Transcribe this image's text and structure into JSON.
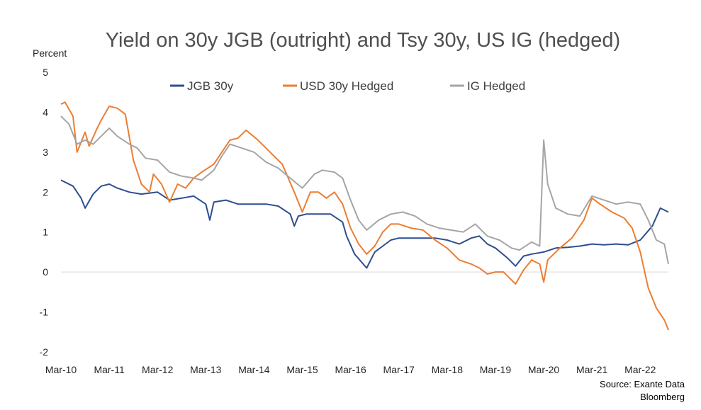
{
  "chart_data": {
    "type": "line",
    "title": "Yield on 30y JGB (outright) and Tsy 30y, US IG (hedged)",
    "ylabel": "Percent",
    "xlabel": "",
    "ylim": [
      -2,
      5
    ],
    "yticks": [
      -2,
      -1,
      0,
      1,
      2,
      3,
      4,
      5
    ],
    "xlim": [
      "2010-03",
      "2022-10"
    ],
    "xtick_labels": [
      "Mar-10",
      "Mar-11",
      "Mar-12",
      "Mar-13",
      "Mar-14",
      "Mar-15",
      "Mar-16",
      "Mar-17",
      "Mar-18",
      "Mar-19",
      "Mar-20",
      "Mar-21",
      "Mar-22"
    ],
    "xtick_dates": [
      "2010-03",
      "2011-03",
      "2012-03",
      "2013-03",
      "2014-03",
      "2015-03",
      "2016-03",
      "2017-03",
      "2018-03",
      "2019-03",
      "2020-03",
      "2021-03",
      "2022-03"
    ],
    "grid": false,
    "legend_position": "top",
    "series": [
      {
        "name": "JGB 30y",
        "color": "#2E4D8F",
        "points": [
          [
            "2010-03",
            2.3
          ],
          [
            "2010-06",
            2.15
          ],
          [
            "2010-08",
            1.85
          ],
          [
            "2010-09",
            1.6
          ],
          [
            "2010-11",
            1.95
          ],
          [
            "2011-01",
            2.15
          ],
          [
            "2011-03",
            2.2
          ],
          [
            "2011-05",
            2.1
          ],
          [
            "2011-08",
            2.0
          ],
          [
            "2011-11",
            1.95
          ],
          [
            "2012-03",
            2.0
          ],
          [
            "2012-06",
            1.8
          ],
          [
            "2012-09",
            1.85
          ],
          [
            "2012-12",
            1.9
          ],
          [
            "2013-03",
            1.7
          ],
          [
            "2013-04",
            1.3
          ],
          [
            "2013-05",
            1.75
          ],
          [
            "2013-08",
            1.8
          ],
          [
            "2013-11",
            1.7
          ],
          [
            "2014-03",
            1.7
          ],
          [
            "2014-06",
            1.7
          ],
          [
            "2014-09",
            1.65
          ],
          [
            "2014-12",
            1.45
          ],
          [
            "2015-01",
            1.15
          ],
          [
            "2015-02",
            1.4
          ],
          [
            "2015-04",
            1.45
          ],
          [
            "2015-07",
            1.45
          ],
          [
            "2015-10",
            1.45
          ],
          [
            "2016-01",
            1.25
          ],
          [
            "2016-02",
            0.9
          ],
          [
            "2016-04",
            0.45
          ],
          [
            "2016-07",
            0.1
          ],
          [
            "2016-09",
            0.5
          ],
          [
            "2016-11",
            0.65
          ],
          [
            "2017-01",
            0.8
          ],
          [
            "2017-03",
            0.85
          ],
          [
            "2017-06",
            0.85
          ],
          [
            "2017-09",
            0.85
          ],
          [
            "2017-12",
            0.85
          ],
          [
            "2018-03",
            0.8
          ],
          [
            "2018-06",
            0.7
          ],
          [
            "2018-09",
            0.85
          ],
          [
            "2018-11",
            0.9
          ],
          [
            "2019-01",
            0.7
          ],
          [
            "2019-03",
            0.6
          ],
          [
            "2019-06",
            0.35
          ],
          [
            "2019-08",
            0.15
          ],
          [
            "2019-10",
            0.4
          ],
          [
            "2019-12",
            0.45
          ],
          [
            "2020-03",
            0.5
          ],
          [
            "2020-06",
            0.6
          ],
          [
            "2020-09",
            0.62
          ],
          [
            "2020-12",
            0.65
          ],
          [
            "2021-03",
            0.7
          ],
          [
            "2021-06",
            0.68
          ],
          [
            "2021-09",
            0.7
          ],
          [
            "2021-12",
            0.68
          ],
          [
            "2022-03",
            0.8
          ],
          [
            "2022-06",
            1.15
          ],
          [
            "2022-08",
            1.6
          ],
          [
            "2022-10",
            1.5
          ]
        ]
      },
      {
        "name": "USD 30y Hedged",
        "color": "#ED7D31",
        "points": [
          [
            "2010-03",
            4.2
          ],
          [
            "2010-04",
            4.25
          ],
          [
            "2010-06",
            3.9
          ],
          [
            "2010-07",
            3.0
          ],
          [
            "2010-09",
            3.5
          ],
          [
            "2010-10",
            3.15
          ],
          [
            "2010-12",
            3.6
          ],
          [
            "2011-01",
            3.8
          ],
          [
            "2011-03",
            4.15
          ],
          [
            "2011-05",
            4.1
          ],
          [
            "2011-07",
            3.95
          ],
          [
            "2011-09",
            2.8
          ],
          [
            "2011-11",
            2.2
          ],
          [
            "2012-01",
            2.0
          ],
          [
            "2012-02",
            2.45
          ],
          [
            "2012-04",
            2.2
          ],
          [
            "2012-06",
            1.75
          ],
          [
            "2012-08",
            2.2
          ],
          [
            "2012-10",
            2.1
          ],
          [
            "2012-12",
            2.35
          ],
          [
            "2013-02",
            2.5
          ],
          [
            "2013-05",
            2.7
          ],
          [
            "2013-07",
            3.0
          ],
          [
            "2013-09",
            3.3
          ],
          [
            "2013-11",
            3.35
          ],
          [
            "2014-01",
            3.55
          ],
          [
            "2014-04",
            3.3
          ],
          [
            "2014-07",
            3.0
          ],
          [
            "2014-10",
            2.7
          ],
          [
            "2015-01",
            2.0
          ],
          [
            "2015-03",
            1.5
          ],
          [
            "2015-05",
            2.0
          ],
          [
            "2015-07",
            2.0
          ],
          [
            "2015-09",
            1.85
          ],
          [
            "2015-11",
            2.0
          ],
          [
            "2016-01",
            1.7
          ],
          [
            "2016-03",
            1.1
          ],
          [
            "2016-05",
            0.7
          ],
          [
            "2016-07",
            0.45
          ],
          [
            "2016-09",
            0.65
          ],
          [
            "2016-11",
            1.0
          ],
          [
            "2017-01",
            1.2
          ],
          [
            "2017-03",
            1.2
          ],
          [
            "2017-06",
            1.1
          ],
          [
            "2017-09",
            1.05
          ],
          [
            "2017-12",
            0.8
          ],
          [
            "2018-03",
            0.6
          ],
          [
            "2018-06",
            0.3
          ],
          [
            "2018-09",
            0.2
          ],
          [
            "2018-11",
            0.1
          ],
          [
            "2019-01",
            -0.05
          ],
          [
            "2019-03",
            0.0
          ],
          [
            "2019-05",
            0.0
          ],
          [
            "2019-08",
            -0.3
          ],
          [
            "2019-10",
            0.05
          ],
          [
            "2019-12",
            0.3
          ],
          [
            "2020-02",
            0.2
          ],
          [
            "2020-03",
            -0.25
          ],
          [
            "2020-04",
            0.3
          ],
          [
            "2020-07",
            0.6
          ],
          [
            "2020-10",
            0.85
          ],
          [
            "2021-01",
            1.3
          ],
          [
            "2021-03",
            1.85
          ],
          [
            "2021-05",
            1.7
          ],
          [
            "2021-08",
            1.5
          ],
          [
            "2021-11",
            1.35
          ],
          [
            "2022-01",
            1.1
          ],
          [
            "2022-03",
            0.5
          ],
          [
            "2022-05",
            -0.4
          ],
          [
            "2022-07",
            -0.9
          ],
          [
            "2022-09",
            -1.2
          ],
          [
            "2022-10",
            -1.45
          ]
        ]
      },
      {
        "name": "IG Hedged",
        "color": "#A5A5A5",
        "points": [
          [
            "2010-03",
            3.9
          ],
          [
            "2010-05",
            3.7
          ],
          [
            "2010-07",
            3.2
          ],
          [
            "2010-09",
            3.3
          ],
          [
            "2010-11",
            3.2
          ],
          [
            "2011-01",
            3.4
          ],
          [
            "2011-03",
            3.6
          ],
          [
            "2011-05",
            3.4
          ],
          [
            "2011-08",
            3.2
          ],
          [
            "2011-10",
            3.1
          ],
          [
            "2011-12",
            2.85
          ],
          [
            "2012-03",
            2.8
          ],
          [
            "2012-06",
            2.5
          ],
          [
            "2012-09",
            2.4
          ],
          [
            "2012-12",
            2.35
          ],
          [
            "2013-02",
            2.3
          ],
          [
            "2013-05",
            2.55
          ],
          [
            "2013-07",
            2.9
          ],
          [
            "2013-09",
            3.2
          ],
          [
            "2013-12",
            3.1
          ],
          [
            "2014-03",
            3.0
          ],
          [
            "2014-06",
            2.75
          ],
          [
            "2014-09",
            2.6
          ],
          [
            "2014-12",
            2.35
          ],
          [
            "2015-03",
            2.1
          ],
          [
            "2015-06",
            2.45
          ],
          [
            "2015-08",
            2.55
          ],
          [
            "2015-11",
            2.5
          ],
          [
            "2016-01",
            2.35
          ],
          [
            "2016-03",
            1.8
          ],
          [
            "2016-05",
            1.3
          ],
          [
            "2016-07",
            1.05
          ],
          [
            "2016-10",
            1.3
          ],
          [
            "2017-01",
            1.45
          ],
          [
            "2017-04",
            1.5
          ],
          [
            "2017-07",
            1.4
          ],
          [
            "2017-10",
            1.2
          ],
          [
            "2018-01",
            1.1
          ],
          [
            "2018-04",
            1.05
          ],
          [
            "2018-07",
            1.0
          ],
          [
            "2018-10",
            1.2
          ],
          [
            "2019-01",
            0.9
          ],
          [
            "2019-04",
            0.8
          ],
          [
            "2019-07",
            0.6
          ],
          [
            "2019-09",
            0.55
          ],
          [
            "2019-12",
            0.75
          ],
          [
            "2020-02",
            0.65
          ],
          [
            "2020-03",
            3.3
          ],
          [
            "2020-04",
            2.2
          ],
          [
            "2020-06",
            1.6
          ],
          [
            "2020-09",
            1.45
          ],
          [
            "2020-12",
            1.4
          ],
          [
            "2021-03",
            1.9
          ],
          [
            "2021-06",
            1.8
          ],
          [
            "2021-09",
            1.7
          ],
          [
            "2021-12",
            1.75
          ],
          [
            "2022-03",
            1.7
          ],
          [
            "2022-05",
            1.3
          ],
          [
            "2022-07",
            0.8
          ],
          [
            "2022-09",
            0.7
          ],
          [
            "2022-10",
            0.2
          ]
        ]
      }
    ]
  },
  "source_lines": [
    "Source: Exante Data",
    "Bloomberg"
  ]
}
